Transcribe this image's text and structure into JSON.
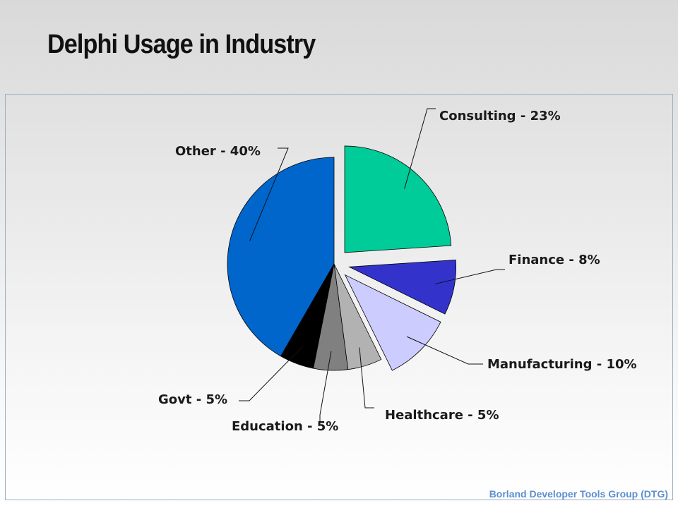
{
  "slide": {
    "title": "Delphi Usage in Industry",
    "footer": "Borland Developer Tools Group (DTG)"
  },
  "chart_data": {
    "type": "pie",
    "title": "",
    "slices": [
      {
        "category": "Consulting",
        "value": 23,
        "label": "Consulting - 23%",
        "color": "#00cc99",
        "exploded": true
      },
      {
        "category": "Finance",
        "value": 8,
        "label": "Finance - 8%",
        "color": "#3333cc",
        "exploded": true
      },
      {
        "category": "Manufacturing",
        "value": 10,
        "label": "Manufacturing - 10%",
        "color": "#ccccff",
        "exploded": true
      },
      {
        "category": "Healthcare",
        "value": 5,
        "label": "Healthcare - 5%",
        "color": "#b2b2b2",
        "exploded": false
      },
      {
        "category": "Education",
        "value": 5,
        "label": "Education - 5%",
        "color": "#808080",
        "exploded": false
      },
      {
        "category": "Govt",
        "value": 5,
        "label": "Govt - 5%",
        "color": "#000000",
        "exploded": false
      },
      {
        "category": "Other",
        "value": 40,
        "label": "Other - 40%",
        "color": "#0066cc",
        "exploded": false
      }
    ]
  }
}
